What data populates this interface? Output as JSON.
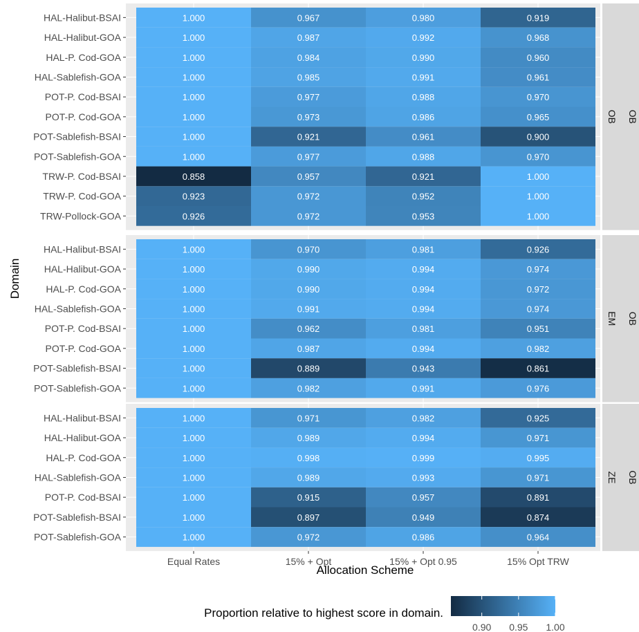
{
  "chart_data": {
    "type": "heatmap",
    "xlabel": "Allocation Scheme",
    "ylabel": "Domain",
    "x_categories": [
      "Equal Rates",
      "15% + Opt",
      "15% + Opt 0.95",
      "15% Opt TRW"
    ],
    "panels": [
      {
        "strip_labels": [
          "OB",
          "OB"
        ],
        "rows": [
          {
            "domain": "HAL-Halibut-BSAI",
            "values": [
              1.0,
              0.967,
              0.98,
              0.919
            ]
          },
          {
            "domain": "HAL-Halibut-GOA",
            "values": [
              1.0,
              0.987,
              0.992,
              0.968
            ]
          },
          {
            "domain": "HAL-P. Cod-GOA",
            "values": [
              1.0,
              0.984,
              0.99,
              0.96
            ]
          },
          {
            "domain": "HAL-Sablefish-GOA",
            "values": [
              1.0,
              0.985,
              0.991,
              0.961
            ]
          },
          {
            "domain": "POT-P. Cod-BSAI",
            "values": [
              1.0,
              0.977,
              0.988,
              0.97
            ]
          },
          {
            "domain": "POT-P. Cod-GOA",
            "values": [
              1.0,
              0.973,
              0.986,
              0.965
            ]
          },
          {
            "domain": "POT-Sablefish-BSAI",
            "values": [
              1.0,
              0.921,
              0.961,
              0.9
            ]
          },
          {
            "domain": "POT-Sablefish-GOA",
            "values": [
              1.0,
              0.977,
              0.988,
              0.97
            ]
          },
          {
            "domain": "TRW-P. Cod-BSAI",
            "values": [
              0.858,
              0.957,
              0.921,
              1.0
            ]
          },
          {
            "domain": "TRW-P. Cod-GOA",
            "values": [
              0.923,
              0.972,
              0.952,
              1.0
            ]
          },
          {
            "domain": "TRW-Pollock-GOA",
            "values": [
              0.926,
              0.972,
              0.953,
              1.0
            ]
          }
        ]
      },
      {
        "strip_labels": [
          "OB",
          "EM"
        ],
        "rows": [
          {
            "domain": "HAL-Halibut-BSAI",
            "values": [
              1.0,
              0.97,
              0.981,
              0.926
            ]
          },
          {
            "domain": "HAL-Halibut-GOA",
            "values": [
              1.0,
              0.99,
              0.994,
              0.974
            ]
          },
          {
            "domain": "HAL-P. Cod-GOA",
            "values": [
              1.0,
              0.99,
              0.994,
              0.972
            ]
          },
          {
            "domain": "HAL-Sablefish-GOA",
            "values": [
              1.0,
              0.991,
              0.994,
              0.974
            ]
          },
          {
            "domain": "POT-P. Cod-BSAI",
            "values": [
              1.0,
              0.962,
              0.981,
              0.951
            ]
          },
          {
            "domain": "POT-P. Cod-GOA",
            "values": [
              1.0,
              0.987,
              0.994,
              0.982
            ]
          },
          {
            "domain": "POT-Sablefish-BSAI",
            "values": [
              1.0,
              0.889,
              0.943,
              0.861
            ]
          },
          {
            "domain": "POT-Sablefish-GOA",
            "values": [
              1.0,
              0.982,
              0.991,
              0.976
            ]
          }
        ]
      },
      {
        "strip_labels": [
          "OB",
          "ZE"
        ],
        "rows": [
          {
            "domain": "HAL-Halibut-BSAI",
            "values": [
              1.0,
              0.971,
              0.982,
              0.925
            ]
          },
          {
            "domain": "HAL-Halibut-GOA",
            "values": [
              1.0,
              0.989,
              0.994,
              0.971
            ]
          },
          {
            "domain": "HAL-P. Cod-GOA",
            "values": [
              1.0,
              0.998,
              0.999,
              0.995
            ]
          },
          {
            "domain": "HAL-Sablefish-GOA",
            "values": [
              1.0,
              0.989,
              0.993,
              0.971
            ]
          },
          {
            "domain": "POT-P. Cod-BSAI",
            "values": [
              1.0,
              0.915,
              0.957,
              0.891
            ]
          },
          {
            "domain": "POT-Sablefish-BSAI",
            "values": [
              1.0,
              0.897,
              0.949,
              0.874
            ]
          },
          {
            "domain": "POT-Sablefish-GOA",
            "values": [
              1.0,
              0.972,
              0.986,
              0.964
            ]
          }
        ]
      }
    ],
    "legend": {
      "title": "Proportion relative to highest score in domain.",
      "position": "bottom",
      "ticks": [
        "0.90",
        "0.95",
        "1.00"
      ],
      "tick_values": [
        0.9,
        0.95,
        1.0
      ],
      "range": [
        0.858,
        1.0
      ],
      "low_color": "#132B43",
      "high_color": "#56B1F7"
    },
    "colors": {
      "panel_background": "#EBEBEB",
      "strip_background": "#D9D9D9",
      "grid": "#FFFFFF"
    }
  }
}
